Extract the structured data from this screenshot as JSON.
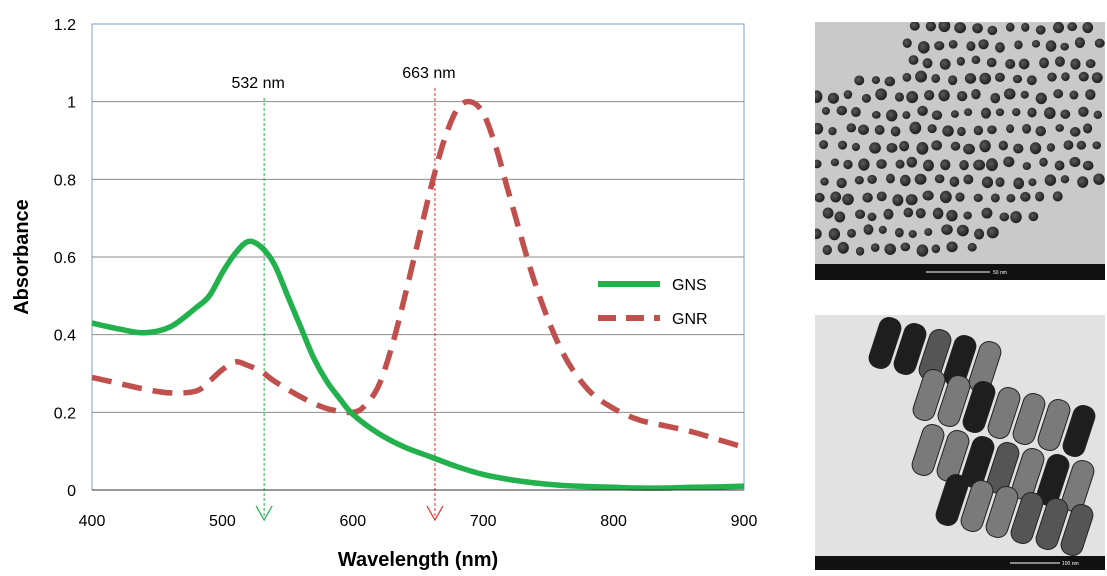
{
  "chart_data": {
    "type": "line",
    "title": "",
    "xlabel": "Wavelength (nm)",
    "ylabel": "Absorbance",
    "xlim": [
      400,
      900
    ],
    "ylim": [
      0,
      1.2
    ],
    "xticks": [
      400,
      500,
      600,
      700,
      800,
      900
    ],
    "yticks": [
      0,
      0.2,
      0.4,
      0.6,
      0.8,
      1,
      1.2
    ],
    "xtick_labels": [
      "400",
      "500",
      "600",
      "700",
      "800",
      "900"
    ],
    "ytick_labels": [
      "0",
      "0.2",
      "0.4",
      "0.6",
      "0.8",
      "1",
      "1.2"
    ],
    "grid": "horizontal",
    "legend_position": "right",
    "series": [
      {
        "name": "GNS",
        "style": "solid",
        "color": "#22b14c",
        "x": [
          400,
          420,
          440,
          460,
          480,
          490,
          500,
          510,
          520,
          530,
          540,
          550,
          560,
          570,
          580,
          590,
          600,
          620,
          640,
          660,
          680,
          700,
          720,
          740,
          760,
          780,
          800,
          820,
          840,
          860,
          880,
          900
        ],
        "y": [
          0.43,
          0.415,
          0.405,
          0.42,
          0.47,
          0.5,
          0.56,
          0.61,
          0.64,
          0.625,
          0.58,
          0.5,
          0.42,
          0.34,
          0.28,
          0.235,
          0.195,
          0.145,
          0.11,
          0.085,
          0.06,
          0.04,
          0.027,
          0.018,
          0.012,
          0.009,
          0.007,
          0.005,
          0.005,
          0.007,
          0.008,
          0.01
        ]
      },
      {
        "name": "GNR",
        "style": "dashed",
        "color": "#c0504d",
        "x": [
          400,
          420,
          440,
          460,
          480,
          490,
          500,
          510,
          520,
          530,
          540,
          560,
          580,
          600,
          610,
          620,
          630,
          640,
          650,
          660,
          670,
          680,
          690,
          700,
          710,
          720,
          740,
          760,
          780,
          800,
          820,
          840,
          860,
          880,
          900
        ],
        "y": [
          0.29,
          0.275,
          0.26,
          0.25,
          0.255,
          0.28,
          0.31,
          0.33,
          0.32,
          0.305,
          0.28,
          0.24,
          0.21,
          0.2,
          0.22,
          0.27,
          0.37,
          0.5,
          0.64,
          0.78,
          0.9,
          0.98,
          1.0,
          0.97,
          0.88,
          0.76,
          0.53,
          0.36,
          0.26,
          0.21,
          0.18,
          0.165,
          0.15,
          0.13,
          0.11
        ]
      }
    ],
    "annotations": [
      {
        "text": "532 nm",
        "x": 532,
        "color": "#22b14c"
      },
      {
        "text": "663 nm",
        "x": 663,
        "color": "#e03030"
      }
    ]
  },
  "images": [
    {
      "name": "tem-gold-nanospheres",
      "scale_text": "50 nm"
    },
    {
      "name": "tem-gold-nanorods",
      "scale_text": "100 nm"
    }
  ]
}
